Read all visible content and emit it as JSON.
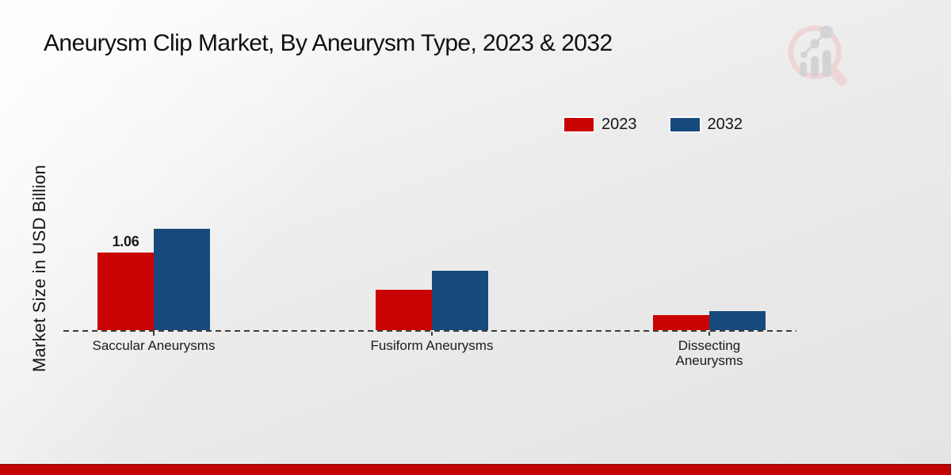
{
  "page": {
    "title": "Aneurysm Clip Market, By Aneurysm Type, 2023 & 2032"
  },
  "chart_data": {
    "type": "bar",
    "title": "Aneurysm Clip Market, By Aneurysm Type, 2023 & 2032",
    "xlabel": "",
    "ylabel": "Market Size in USD Billion",
    "ylim": [
      0,
      1.5
    ],
    "grid": false,
    "legend_position": "top-right",
    "categories": [
      "Saccular Aneurysms",
      "Fusiform Aneurysms",
      "Dissecting Aneurysms"
    ],
    "series": [
      {
        "name": "2023",
        "color": "#c90303",
        "values": [
          1.06,
          0.55,
          0.2
        ]
      },
      {
        "name": "2032",
        "color": "#174a7c",
        "values": [
          1.38,
          0.81,
          0.26
        ]
      }
    ],
    "annotations": [
      {
        "series_index": 0,
        "category_index": 0,
        "text": "1.06"
      }
    ]
  },
  "icons": {
    "watermark": "magnifier-bar-chart-logo"
  },
  "colors": {
    "series_2023": "#c90303",
    "series_2032": "#174a7c",
    "footer_band": "#c40404",
    "baseline": "#3c3c3c",
    "background_top": "#fafafa",
    "background_bottom": "#e4e4e4",
    "watermark_pink": "#eed6d6",
    "watermark_gray": "#d3d3d6"
  }
}
